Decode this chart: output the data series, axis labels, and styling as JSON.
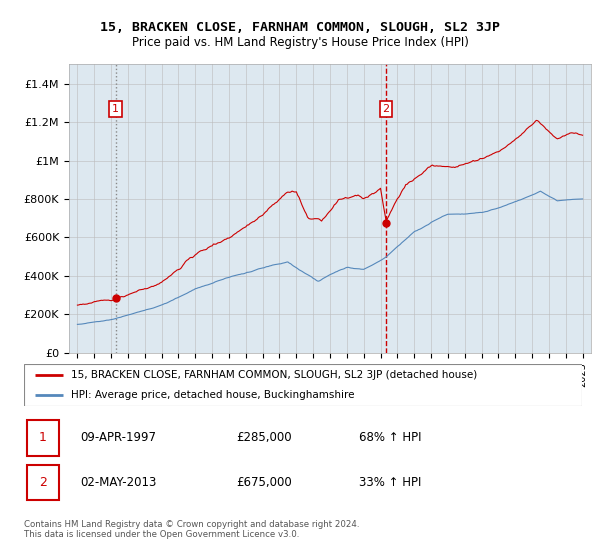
{
  "title": "15, BRACKEN CLOSE, FARNHAM COMMON, SLOUGH, SL2 3JP",
  "subtitle": "Price paid vs. HM Land Registry's House Price Index (HPI)",
  "legend_line1": "15, BRACKEN CLOSE, FARNHAM COMMON, SLOUGH, SL2 3JP (detached house)",
  "legend_line2": "HPI: Average price, detached house, Buckinghamshire",
  "table_row1_num": "1",
  "table_row1_date": "09-APR-1997",
  "table_row1_price": "£285,000",
  "table_row1_hpi": "68% ↑ HPI",
  "table_row2_num": "2",
  "table_row2_date": "02-MAY-2013",
  "table_row2_price": "£675,000",
  "table_row2_hpi": "33% ↑ HPI",
  "footnote": "Contains HM Land Registry data © Crown copyright and database right 2024.\nThis data is licensed under the Open Government Licence v3.0.",
  "sale1_year": 1997.27,
  "sale1_price": 285000,
  "sale2_year": 2013.33,
  "sale2_price": 675000,
  "red_color": "#cc0000",
  "blue_color": "#5588bb",
  "bg_fill_color": "#dde8f0",
  "grid_color": "#cccccc",
  "xmin": 1994.5,
  "xmax": 2025.5,
  "ymin": 0,
  "ymax": 1500000
}
